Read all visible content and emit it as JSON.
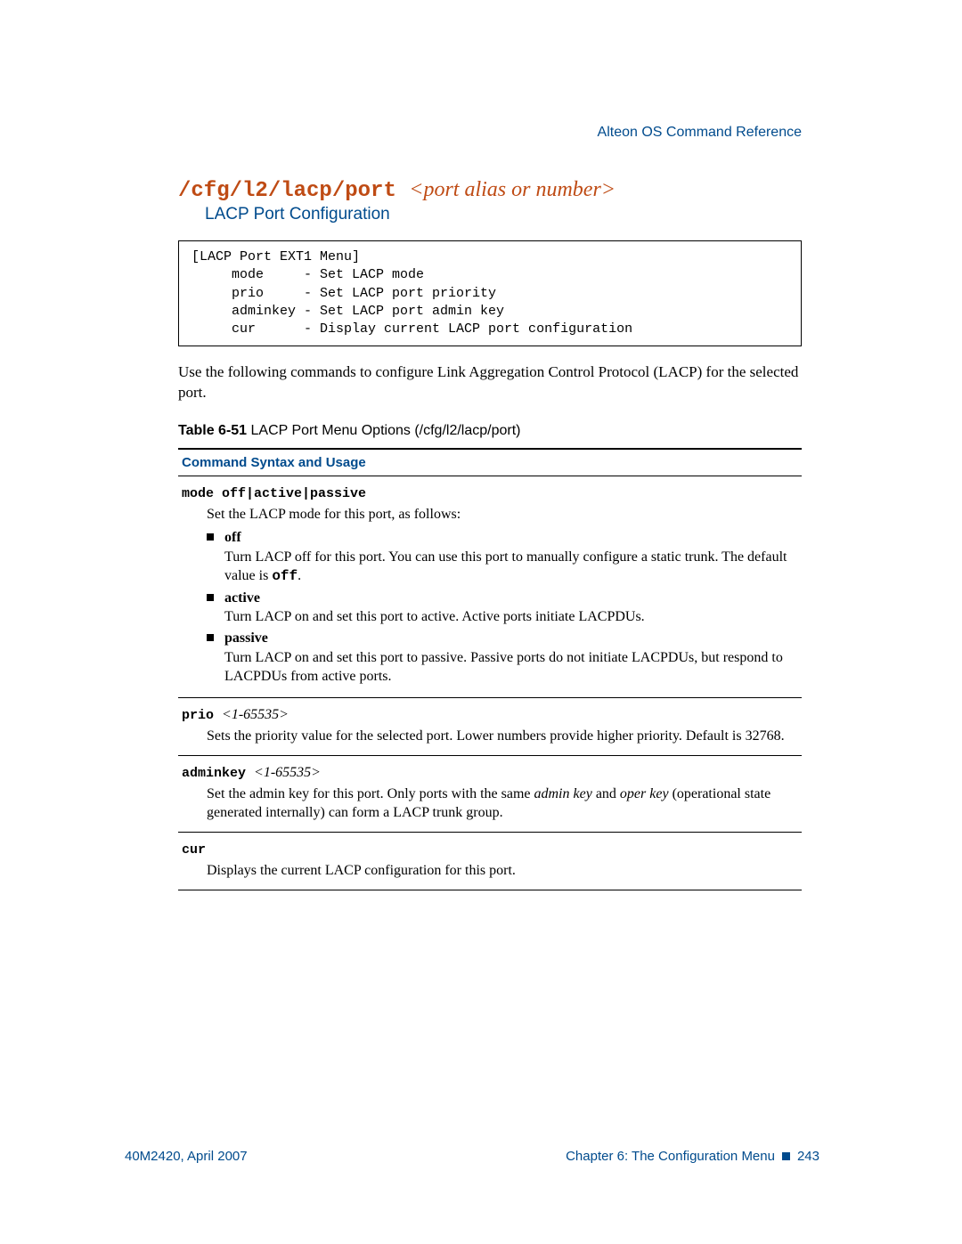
{
  "colors": {
    "accent_blue": "#004b8d",
    "accent_orange": "#bf4b14",
    "text": "#000000",
    "background": "#ffffff"
  },
  "typography": {
    "body_font": "Times New Roman",
    "mono_font": "Courier New",
    "sans_font": "Segoe UI",
    "title_cmd_size_pt": 18,
    "subtitle_size_pt": 14,
    "body_size_pt": 12
  },
  "header": {
    "doc_title": "Alteon OS  Command Reference"
  },
  "title": {
    "cmd": "/cfg/l2/lacp/port ",
    "arg": "<port alias or number>",
    "subtitle": "LACP Port Configuration"
  },
  "menu_box": "[LACP Port EXT1 Menu]\n     mode     - Set LACP mode\n     prio     - Set LACP port priority\n     adminkey - Set LACP port admin key\n     cur      - Display current LACP port configuration",
  "intro": "Use the following commands to configure Link Aggregation Control Protocol (LACP) for the selected port.",
  "table": {
    "caption_bold": "Table 6-51",
    "caption_rest": "  LACP Port Menu Options (/cfg/l2/lacp/port)",
    "header": "Command Syntax and Usage",
    "rows": [
      {
        "cmd_mono": "mode off|active|passive",
        "cmd_ital": "",
        "desc_pre": "Set the LACP mode for this port, as follows:",
        "bullets": [
          {
            "head": "off",
            "body_pre": "Turn LACP off for this port. You can use this port to manually configure a static trunk. The default value is ",
            "body_code": "off",
            "body_post": "."
          },
          {
            "head": "active",
            "body_pre": "Turn LACP on and set this port to active. Active ports initiate LACPDUs.",
            "body_code": "",
            "body_post": ""
          },
          {
            "head": "passive",
            "body_pre": "Turn LACP on and set this port to passive. Passive ports do not initiate LACPDUs, but respond to LACPDUs from active ports.",
            "body_code": "",
            "body_post": ""
          }
        ]
      },
      {
        "cmd_mono": "prio ",
        "cmd_ital": "<1-65535>",
        "desc_pre": "Sets the priority value for the selected port. Lower numbers provide higher priority. Default is 32768.",
        "bullets": []
      },
      {
        "cmd_mono": "adminkey ",
        "cmd_ital": "<1-65535>",
        "desc_html": "Set the admin key for this port. Only ports with the same <i>admin key</i> and <i>oper key</i> (operational state generated internally) can form a LACP trunk group.",
        "bullets": []
      },
      {
        "cmd_mono": "cur",
        "cmd_ital": "",
        "desc_pre": "Displays the current LACP configuration for this port.",
        "bullets": []
      }
    ]
  },
  "footer": {
    "left": "40M2420, April 2007",
    "right_chapter": "Chapter 6:  The Configuration Menu",
    "right_page": "243"
  }
}
